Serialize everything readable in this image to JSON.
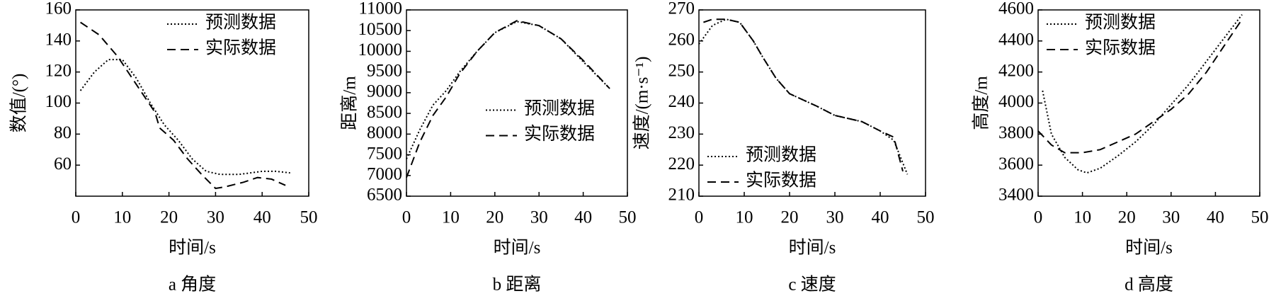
{
  "chart_data": [
    {
      "type": "line",
      "caption": "a 角度",
      "xlabel": "时间/s",
      "ylabel": "数值/(°)",
      "xlim": [
        0,
        50
      ],
      "xticks": [
        0,
        10,
        20,
        30,
        40,
        50
      ],
      "ylim": [
        40,
        160
      ],
      "yticks": [
        60,
        80,
        100,
        120,
        140,
        160
      ],
      "legend": "upper right",
      "series": [
        {
          "name": "预测数据",
          "color": "#000000",
          "style": "dotted",
          "x": [
            1,
            4,
            7,
            10,
            13,
            16,
            19,
            22,
            25,
            28,
            31,
            35,
            40,
            43,
            46
          ],
          "values": [
            108,
            120,
            128,
            128,
            116,
            100,
            86,
            76,
            64,
            56,
            54,
            54,
            56,
            56,
            55
          ]
        },
        {
          "name": "实际数据",
          "color": "#000000",
          "style": "dashed",
          "x": [
            1,
            5,
            9,
            13,
            17,
            18,
            21,
            24,
            27,
            30,
            32,
            36,
            39,
            42,
            45
          ],
          "values": [
            152,
            144,
            130,
            112,
            94,
            84,
            76,
            64,
            54,
            45,
            46,
            49,
            52,
            51,
            47
          ]
        }
      ]
    },
    {
      "type": "line",
      "caption": "b 距离",
      "xlabel": "时间/s",
      "ylabel": "距离/m",
      "xlim": [
        0,
        50
      ],
      "xticks": [
        0,
        10,
        20,
        30,
        40,
        50
      ],
      "ylim": [
        6500,
        11000
      ],
      "yticks": [
        6500,
        7000,
        7500,
        8000,
        8500,
        9000,
        9500,
        10000,
        10500,
        11000
      ],
      "legend": "center right",
      "series": [
        {
          "name": "预测数据",
          "color": "#000000",
          "style": "dotted",
          "x": [
            0,
            3,
            6,
            9,
            12,
            16,
            20,
            25,
            30,
            35,
            40,
            46
          ],
          "values": [
            7400,
            8100,
            8700,
            9050,
            9500,
            10000,
            10450,
            10720,
            10620,
            10300,
            9750,
            9100
          ]
        },
        {
          "name": "实际数据",
          "color": "#000000",
          "style": "dashed",
          "x": [
            0,
            3,
            6,
            9,
            12,
            16,
            20,
            25,
            30,
            35,
            40,
            46
          ],
          "values": [
            6950,
            7800,
            8450,
            8900,
            9450,
            10000,
            10450,
            10740,
            10620,
            10300,
            9780,
            9100
          ]
        }
      ]
    },
    {
      "type": "line",
      "caption": "c 速度",
      "xlabel": "时间/s",
      "ylabel": "速度/(m·s⁻¹)",
      "xlim": [
        0,
        50
      ],
      "xticks": [
        0,
        10,
        20,
        30,
        40,
        50
      ],
      "ylim": [
        210,
        270
      ],
      "yticks": [
        210,
        220,
        230,
        240,
        250,
        260,
        270
      ],
      "legend": "lower left",
      "series": [
        {
          "name": "预测数据",
          "color": "#000000",
          "style": "dotted",
          "x": [
            0,
            3,
            6,
            9,
            12,
            14,
            17,
            20,
            23,
            26,
            30,
            33,
            36,
            40,
            43,
            46
          ],
          "values": [
            259,
            265,
            267,
            266,
            260,
            255,
            248,
            243,
            241,
            239,
            236,
            235,
            234,
            231,
            228,
            217
          ]
        },
        {
          "name": "实际数据",
          "color": "#000000",
          "style": "dashed",
          "x": [
            1,
            3,
            6,
            9,
            12,
            14,
            17,
            20,
            23,
            26,
            30,
            33,
            36,
            40,
            43,
            45
          ],
          "values": [
            266,
            267,
            267,
            266,
            260,
            255,
            248,
            243,
            241,
            239,
            236,
            235,
            234,
            231,
            229,
            218
          ]
        }
      ]
    },
    {
      "type": "line",
      "caption": "d 高度",
      "xlabel": "时间/s",
      "ylabel": "高度/m",
      "xlim": [
        0,
        50
      ],
      "xticks": [
        0,
        10,
        20,
        30,
        40,
        50
      ],
      "ylim": [
        3400,
        4600
      ],
      "yticks": [
        3400,
        3600,
        3800,
        4000,
        4200,
        4400,
        4600
      ],
      "legend": "upper left",
      "series": [
        {
          "name": "预测数据",
          "color": "#000000",
          "style": "dotted",
          "x": [
            1,
            3,
            6,
            9,
            11,
            14,
            18,
            22,
            26,
            30,
            34,
            38,
            42,
            46
          ],
          "values": [
            4080,
            3800,
            3650,
            3570,
            3550,
            3580,
            3660,
            3750,
            3860,
            3990,
            4120,
            4270,
            4420,
            4570
          ]
        },
        {
          "name": "实际数据",
          "color": "#000000",
          "style": "dashed",
          "x": [
            0,
            3,
            6,
            10,
            14,
            18,
            22,
            26,
            30,
            34,
            38,
            42,
            46
          ],
          "values": [
            3820,
            3730,
            3680,
            3680,
            3700,
            3750,
            3800,
            3880,
            3960,
            4060,
            4200,
            4370,
            4540
          ]
        }
      ]
    }
  ]
}
